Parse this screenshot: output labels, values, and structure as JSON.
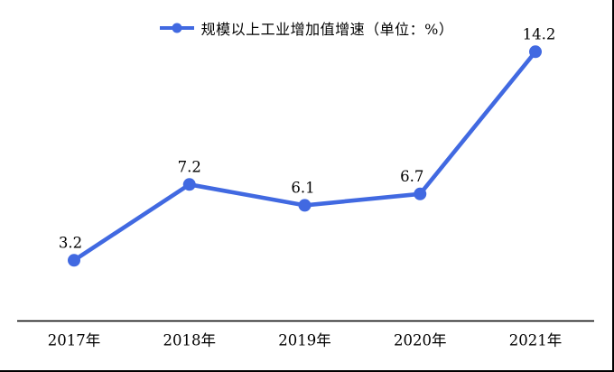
{
  "window": {
    "background": "#ffffff",
    "frame_border_color": "#000000"
  },
  "chart_data": {
    "type": "line",
    "title": "",
    "legend_entries": [
      "规模以上工业增加值增速（单位：%）"
    ],
    "legend_position": "top-center",
    "categories": [
      "2017年",
      "2018年",
      "2019年",
      "2020年",
      "2021年"
    ],
    "series": [
      {
        "name": "规模以上工业增加值增速",
        "values": [
          3.2,
          7.2,
          6.1,
          6.7,
          14.2
        ],
        "value_labels": [
          "3.2",
          "7.2",
          "6.1",
          "6.7",
          "14.2"
        ],
        "color": "#4169E1",
        "marker": "circle"
      }
    ],
    "unit": "%",
    "xlabel": "",
    "ylabel": "",
    "ylim": [
      0,
      15
    ],
    "grid": false,
    "y_axis_visible": false,
    "x_axis_line_color": "#000000",
    "text_color": "#000000"
  }
}
